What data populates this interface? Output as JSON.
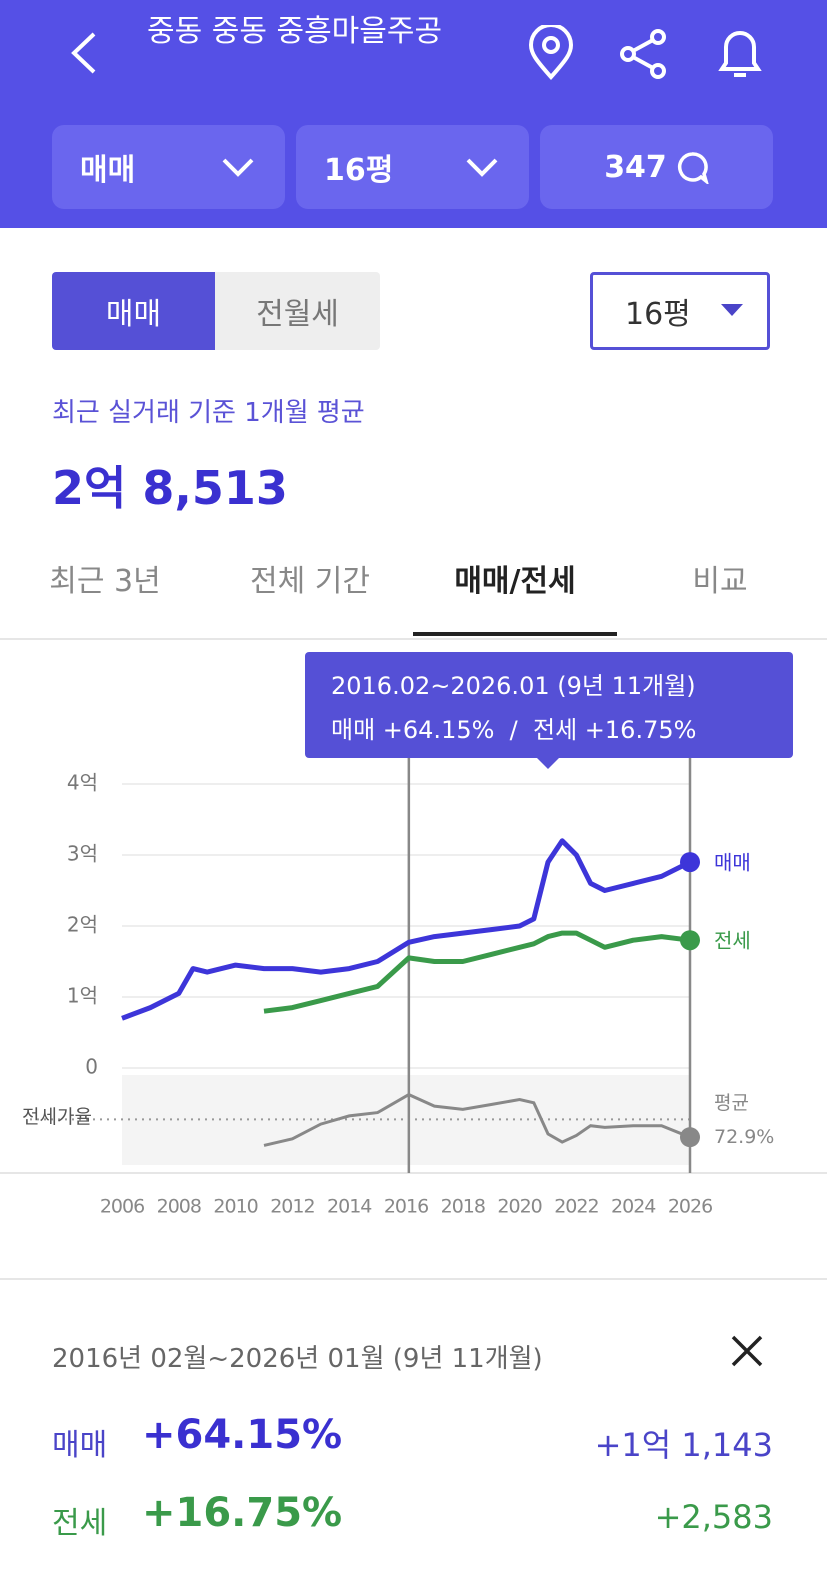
{
  "header": {
    "title": "중동 중동 중흥마을주공",
    "filters": [
      "매매",
      "16평",
      "347"
    ]
  },
  "controls": {
    "toggle": [
      "매매",
      "전월세"
    ],
    "size": "16평"
  },
  "summary": {
    "caption": "최근 실거래 기준 1개월 평균",
    "price": "2억 8,513"
  },
  "tabs": [
    "최근 3년",
    "전체 기간",
    "매매/전세",
    "비교"
  ],
  "chart_data": {
    "type": "line",
    "tooltip": {
      "line1": "2016.02~2026.01 (9년 11개월)",
      "line2": "매매 +64.15%  /  전세 +16.75%"
    },
    "x": [
      2006,
      2007,
      2008,
      2008.5,
      2009,
      2010,
      2011,
      2012,
      2013,
      2014,
      2015,
      2016.1,
      2017,
      2018,
      2019,
      2020,
      2020.5,
      2021,
      2021.5,
      2022,
      2022.5,
      2023,
      2024,
      2025,
      2026
    ],
    "xlim": [
      2006,
      2026
    ],
    "xticks": [
      2006,
      2008,
      2010,
      2012,
      2014,
      2016,
      2018,
      2020,
      2022,
      2024,
      2026
    ],
    "ylim": [
      0,
      4
    ],
    "yticks": [
      0,
      {
        "value": 1,
        "label": "1억"
      },
      {
        "value": 2,
        "label": "2억"
      },
      {
        "value": 3,
        "label": "3억"
      },
      {
        "value": 4,
        "label": "4억"
      }
    ],
    "grid": true,
    "range": [
      2016.1,
      2026
    ],
    "series": [
      {
        "name": "매매",
        "color": "#3d35d9",
        "values": [
          0.7,
          0.85,
          1.05,
          1.4,
          1.35,
          1.45,
          1.4,
          1.4,
          1.35,
          1.4,
          1.5,
          1.77,
          1.85,
          1.9,
          1.95,
          2.0,
          2.1,
          2.9,
          3.2,
          3.0,
          2.6,
          2.5,
          2.6,
          2.7,
          2.9
        ]
      },
      {
        "name": "전세",
        "color": "#3a9a4a",
        "values": [
          null,
          null,
          null,
          null,
          null,
          null,
          0.8,
          0.85,
          0.95,
          1.05,
          1.15,
          1.55,
          1.5,
          1.5,
          1.6,
          1.7,
          1.75,
          1.85,
          1.9,
          1.9,
          1.8,
          1.7,
          1.8,
          1.85,
          1.8
        ]
      }
    ],
    "ratio": {
      "name": "전세가율",
      "color": "#888888",
      "ylim": [
        45,
        100
      ],
      "values": [
        null,
        null,
        null,
        null,
        null,
        null,
        57,
        61,
        70,
        75,
        77,
        88,
        81,
        79,
        82,
        85,
        83,
        64,
        59,
        63,
        69,
        68,
        69,
        69,
        62
      ],
      "average": 72.9,
      "average_label": "평균",
      "average_value_label": "72.9%"
    }
  },
  "detail": {
    "period": "2016년 02월~2026년 01월 (9년 11개월)",
    "rows": [
      {
        "name": "매매",
        "change": "+64.15%",
        "amount": "+1억 1,143"
      },
      {
        "name": "전세",
        "change": "+16.75%",
        "amount": "+2,583"
      }
    ]
  }
}
